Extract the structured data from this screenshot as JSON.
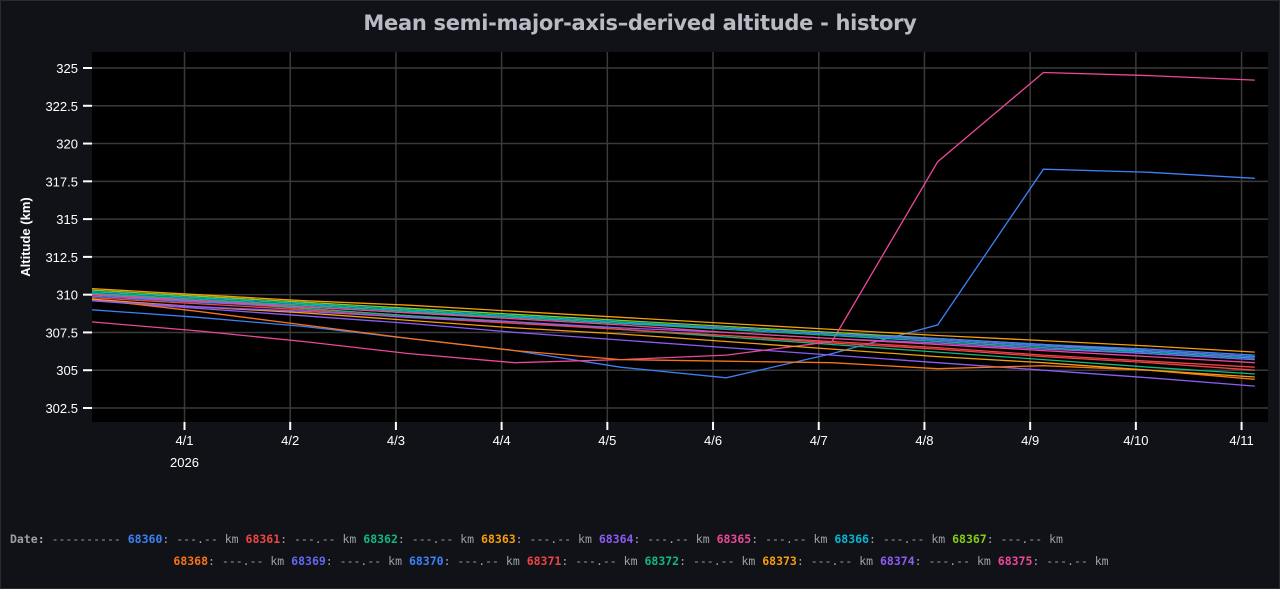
{
  "title": "Mean semi-major-axis–derived altitude - history",
  "legend": {
    "date_label": "Date:",
    "date_value": "----------",
    "value_placeholder": "---.--",
    "unit": "km"
  },
  "chart_data": {
    "type": "line",
    "title": "Mean semi-major-axis–derived altitude - history",
    "xlabel": "",
    "ylabel": "Altitude (km)",
    "ylim": [
      301.5,
      326
    ],
    "xlim": [
      "2026-03-31T03:00",
      "2026-04-11T06:00"
    ],
    "y_ticks": [
      "302.5",
      "305",
      "307.5",
      "310",
      "312.5",
      "315",
      "317.5",
      "320",
      "322.5",
      "325"
    ],
    "x_ticks": [
      "4/1",
      "4/2",
      "4/3",
      "4/4",
      "4/5",
      "4/6",
      "4/7",
      "4/8",
      "4/9",
      "4/10",
      "4/11"
    ],
    "x_tick_year": "2026",
    "grid": true,
    "legend_placement": "bottom",
    "background": "#000000",
    "x": [
      "2026-03-31T03:00",
      "2026-04-01T03:00",
      "2026-04-02T03:00",
      "2026-04-03T03:00",
      "2026-04-04T03:00",
      "2026-04-05T03:00",
      "2026-04-06T03:00",
      "2026-04-07T03:00",
      "2026-04-08T03:00",
      "2026-04-09T03:00",
      "2026-04-10T03:00",
      "2026-04-11T03:00"
    ],
    "series": [
      {
        "name": "68360",
        "color": "#3b82f6",
        "values": [
          309.0,
          308.5,
          307.9,
          307.1,
          306.3,
          305.2,
          304.5,
          306.1,
          308.0,
          318.3,
          318.1,
          317.7
        ]
      },
      {
        "name": "68361",
        "color": "#ef4444",
        "values": [
          310.0,
          309.55,
          309.1,
          308.6,
          308.2,
          307.7,
          307.3,
          306.8,
          306.4,
          305.9,
          305.5,
          305.0
        ]
      },
      {
        "name": "68362",
        "color": "#10b981",
        "values": [
          310.1,
          309.6,
          309.1,
          308.6,
          308.2,
          307.7,
          307.2,
          306.7,
          306.2,
          305.7,
          305.2,
          304.75
        ]
      },
      {
        "name": "68363",
        "color": "#f59e0b",
        "values": [
          310.4,
          310.0,
          309.6,
          309.3,
          308.9,
          308.5,
          308.1,
          307.7,
          307.3,
          306.96,
          306.6,
          306.2
        ]
      },
      {
        "name": "68364",
        "color": "#8b5cf6",
        "values": [
          309.6,
          309.1,
          308.6,
          308.1,
          307.5,
          307.0,
          306.5,
          306.0,
          305.5,
          305.0,
          304.5,
          303.95
        ]
      },
      {
        "name": "68365",
        "color": "#ec4899",
        "values": [
          308.2,
          307.6,
          306.9,
          306.1,
          305.5,
          305.7,
          306.0,
          306.9,
          318.8,
          324.7,
          324.5,
          324.2
        ]
      },
      {
        "name": "68366",
        "color": "#06b6d4",
        "values": [
          310.2,
          309.8,
          309.4,
          309.0,
          308.6,
          308.2,
          307.8,
          307.4,
          307.0,
          306.6,
          306.2,
          305.8
        ]
      },
      {
        "name": "68367",
        "color": "#84cc16",
        "values": [
          310.3,
          309.9,
          309.5,
          309.1,
          308.7,
          308.3,
          307.9,
          307.5,
          307.1,
          306.7,
          306.3,
          305.9
        ]
      },
      {
        "name": "68368",
        "color": "#f97316",
        "values": [
          309.7,
          308.9,
          308.0,
          307.1,
          306.3,
          305.7,
          305.6,
          305.5,
          305.1,
          305.3,
          305.0,
          304.4
        ]
      },
      {
        "name": "68369",
        "color": "#6366f1",
        "values": [
          310.0,
          309.6,
          309.3,
          308.9,
          308.5,
          308.1,
          307.8,
          307.4,
          307.0,
          306.6,
          306.3,
          305.9
        ]
      },
      {
        "name": "68370",
        "color": "#3b82f6",
        "values": [
          309.9,
          309.5,
          309.2,
          308.8,
          308.5,
          308.1,
          307.8,
          307.4,
          307.1,
          306.7,
          306.4,
          306.0
        ]
      },
      {
        "name": "68371",
        "color": "#ef4444",
        "values": [
          309.8,
          309.4,
          309.0,
          308.5,
          308.1,
          307.7,
          307.3,
          306.9,
          306.5,
          306.0,
          305.6,
          305.2
        ]
      },
      {
        "name": "68372",
        "color": "#10b981",
        "values": [
          310.1,
          309.7,
          309.3,
          308.9,
          308.5,
          308.1,
          307.7,
          307.3,
          306.9,
          306.5,
          306.1,
          305.7
        ]
      },
      {
        "name": "68373",
        "color": "#f59e0b",
        "values": [
          309.7,
          309.2,
          308.8,
          308.3,
          307.8,
          307.4,
          306.9,
          306.4,
          305.9,
          305.5,
          305.0,
          304.55
        ]
      },
      {
        "name": "68374",
        "color": "#8b5cf6",
        "values": [
          309.6,
          309.2,
          308.9,
          308.5,
          308.2,
          307.8,
          307.5,
          307.1,
          306.8,
          306.4,
          306.1,
          305.7
        ]
      },
      {
        "name": "68375",
        "color": "#ec4899",
        "values": [
          310.0,
          309.6,
          309.2,
          308.8,
          308.4,
          308.0,
          307.5,
          307.1,
          306.7,
          306.3,
          305.9,
          305.5
        ]
      }
    ]
  }
}
